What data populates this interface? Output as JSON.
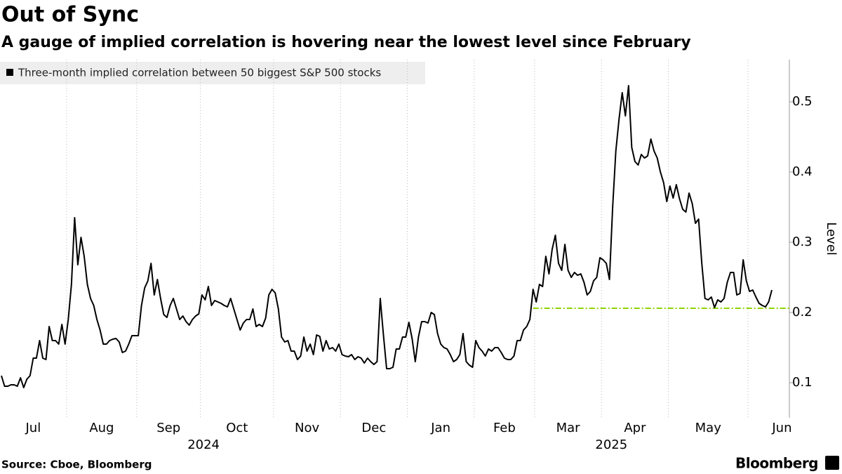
{
  "chart_data": {
    "type": "line",
    "title": "Out of Sync",
    "subtitle": "A gauge of implied correlation is hovering near the lowest level since February",
    "y_axis_label": "Level",
    "source": "Source: Cboe, Bloomberg",
    "logo": "Bloomberg",
    "year_labels": [
      "2024",
      "2025"
    ],
    "categories": [
      "Jul",
      null,
      null,
      null,
      null,
      null,
      null,
      null,
      null,
      null,
      null,
      null,
      null,
      null,
      null,
      null,
      null,
      null,
      null,
      null,
      null,
      "Aug",
      null,
      null,
      null,
      null,
      null,
      null,
      null,
      null,
      null,
      null,
      null,
      null,
      null,
      null,
      null,
      null,
      null,
      null,
      null,
      null,
      null,
      "Sep",
      null,
      null,
      null,
      null,
      null,
      null,
      null,
      null,
      null,
      null,
      null,
      null,
      null,
      null,
      null,
      null,
      null,
      null,
      null,
      "Oct",
      null,
      null,
      null,
      null,
      null,
      null,
      null,
      null,
      null,
      null,
      null,
      null,
      null,
      null,
      null,
      null,
      null,
      null,
      null,
      null,
      null,
      null,
      "Nov",
      null,
      null,
      null,
      null,
      null,
      null,
      null,
      null,
      null,
      null,
      null,
      null,
      null,
      null,
      null,
      null,
      null,
      null,
      null,
      null,
      "Dec",
      null,
      null,
      null,
      null,
      null,
      null,
      null,
      null,
      null,
      null,
      null,
      null,
      null,
      null,
      null,
      null,
      null,
      null,
      null,
      null,
      "Jan",
      null,
      null,
      null,
      null,
      null,
      null,
      null,
      null,
      null,
      null,
      null,
      null,
      null,
      null,
      null,
      null,
      null,
      null,
      null,
      null,
      "Feb",
      null,
      null,
      null,
      null,
      null,
      null,
      null,
      null,
      null,
      null,
      null,
      null,
      null,
      null,
      null,
      null,
      null,
      null,
      "Mar",
      null,
      null,
      null,
      null,
      null,
      null,
      null,
      null,
      null,
      null,
      null,
      null,
      null,
      null,
      null,
      null,
      null,
      null,
      null,
      null,
      "Apr",
      null,
      null,
      null,
      null,
      null,
      null,
      null,
      null,
      null,
      null,
      null,
      null,
      null,
      null,
      null,
      null,
      null,
      null,
      null,
      null,
      "May",
      null,
      null,
      null,
      null,
      null,
      null,
      null,
      null,
      null,
      null,
      null,
      null,
      null,
      null,
      null,
      null,
      null,
      null,
      null,
      null,
      null,
      null,
      null,
      null,
      "Jun",
      null,
      null,
      null,
      null,
      null,
      null,
      null
    ],
    "series": [
      {
        "name": "Three-month implied correlation between 50 biggest S&P 500 stocks",
        "color": "#000000",
        "values": [
          0.11,
          0.095,
          0.095,
          0.097,
          0.097,
          0.095,
          0.107,
          0.093,
          0.105,
          0.11,
          0.135,
          0.135,
          0.16,
          0.135,
          0.133,
          0.18,
          0.16,
          0.16,
          0.155,
          0.183,
          0.155,
          0.19,
          0.24,
          0.335,
          0.268,
          0.307,
          0.28,
          0.24,
          0.22,
          0.21,
          0.19,
          0.175,
          0.155,
          0.155,
          0.16,
          0.162,
          0.163,
          0.158,
          0.143,
          0.145,
          0.155,
          0.167,
          0.167,
          0.167,
          0.21,
          0.235,
          0.245,
          0.27,
          0.225,
          0.247,
          0.22,
          0.197,
          0.193,
          0.21,
          0.22,
          0.205,
          0.19,
          0.195,
          0.187,
          0.182,
          0.19,
          0.195,
          0.198,
          0.225,
          0.218,
          0.237,
          0.21,
          0.217,
          0.215,
          0.213,
          0.21,
          0.208,
          0.22,
          0.205,
          0.19,
          0.175,
          0.185,
          0.19,
          0.19,
          0.205,
          0.18,
          0.183,
          0.18,
          0.192,
          0.225,
          0.233,
          0.228,
          0.205,
          0.165,
          0.158,
          0.16,
          0.145,
          0.145,
          0.133,
          0.138,
          0.165,
          0.145,
          0.155,
          0.14,
          0.168,
          0.166,
          0.145,
          0.16,
          0.148,
          0.15,
          0.145,
          0.155,
          0.14,
          0.138,
          0.137,
          0.14,
          0.133,
          0.137,
          0.135,
          0.128,
          0.135,
          0.13,
          0.126,
          0.13,
          0.22,
          0.168,
          0.12,
          0.12,
          0.122,
          0.148,
          0.148,
          0.165,
          0.165,
          0.186,
          0.163,
          0.13,
          0.165,
          0.187,
          0.187,
          0.185,
          0.2,
          0.197,
          0.17,
          0.155,
          0.15,
          0.148,
          0.14,
          0.13,
          0.133,
          0.14,
          0.17,
          0.13,
          0.125,
          0.122,
          0.16,
          0.15,
          0.145,
          0.138,
          0.148,
          0.145,
          0.15,
          0.15,
          0.143,
          0.135,
          0.133,
          0.133,
          0.138,
          0.16,
          0.16,
          0.175,
          0.18,
          0.19,
          0.233,
          0.215,
          0.24,
          0.237,
          0.28,
          0.255,
          0.29,
          0.31,
          0.27,
          0.26,
          0.297,
          0.26,
          0.25,
          0.257,
          0.253,
          0.255,
          0.243,
          0.225,
          0.23,
          0.245,
          0.25,
          0.278,
          0.275,
          0.27,
          0.247,
          0.35,
          0.43,
          0.475,
          0.513,
          0.48,
          0.523,
          0.435,
          0.415,
          0.41,
          0.425,
          0.42,
          0.423,
          0.447,
          0.43,
          0.42,
          0.4,
          0.385,
          0.358,
          0.38,
          0.363,
          0.382,
          0.362,
          0.347,
          0.343,
          0.37,
          0.355,
          0.327,
          0.333,
          0.27,
          0.22,
          0.218,
          0.222,
          0.207,
          0.218,
          0.215,
          0.22,
          0.243,
          0.257,
          0.257,
          0.225,
          0.227,
          0.275,
          0.245,
          0.23,
          0.232,
          0.222,
          0.213,
          0.21,
          0.208,
          0.215,
          0.232
        ]
      }
    ],
    "reference_line": {
      "value": 0.206,
      "color": "#8fd400"
    },
    "ylim": [
      0.05,
      0.56
    ],
    "yticks": [
      0.1,
      0.2,
      0.3,
      0.4,
      0.5
    ],
    "grid": true
  }
}
